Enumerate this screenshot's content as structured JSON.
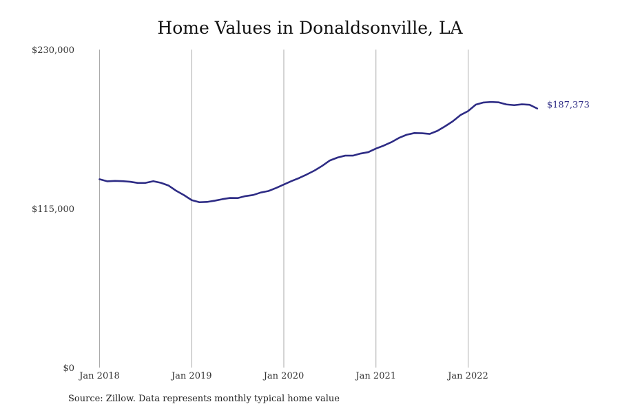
{
  "chart_data": {
    "type": "line",
    "title": "Home Values in Donaldsonville, LA",
    "source": "Source: Zillow. Data represents monthly typical home value",
    "ylim": [
      0,
      230000
    ],
    "y_ticks": [
      {
        "value": 230000,
        "label": "$230,000"
      },
      {
        "value": 115000,
        "label": "$115,000"
      },
      {
        "value": 0,
        "label": "$0"
      }
    ],
    "xlim": [
      0,
      53
    ],
    "x_ticks": [
      {
        "value": 0,
        "label": "Jan 2018"
      },
      {
        "value": 12,
        "label": "Jan 2019"
      },
      {
        "value": 24,
        "label": "Jan 2020"
      },
      {
        "value": 36,
        "label": "Jan 2021"
      },
      {
        "value": 48,
        "label": "Jan 2022"
      }
    ],
    "grid": {
      "vertical": true,
      "horizontal": false
    },
    "series": [
      {
        "color": "#2e2c85",
        "end_label": "$187,373",
        "x": [
          "Jan 2018",
          "Feb 2018",
          "Mar 2018",
          "Apr 2018",
          "May 2018",
          "Jun 2018",
          "Jul 2018",
          "Aug 2018",
          "Sep 2018",
          "Oct 2018",
          "Nov 2018",
          "Dec 2018",
          "Jan 2019",
          "Feb 2019",
          "Mar 2019",
          "Apr 2019",
          "May 2019",
          "Jun 2019",
          "Jul 2019",
          "Aug 2019",
          "Sep 2019",
          "Oct 2019",
          "Nov 2019",
          "Dec 2019",
          "Jan 2020",
          "Feb 2020",
          "Mar 2020",
          "Apr 2020",
          "May 2020",
          "Jun 2020",
          "Jul 2020",
          "Aug 2020",
          "Sep 2020",
          "Oct 2020",
          "Nov 2020",
          "Dec 2020",
          "Jan 2021",
          "Feb 2021",
          "Mar 2021",
          "Apr 2021",
          "May 2021",
          "Jun 2021",
          "Jul 2021",
          "Aug 2021",
          "Sep 2021",
          "Oct 2021",
          "Nov 2021",
          "Dec 2021",
          "Jan 2022",
          "Feb 2022",
          "Mar 2022",
          "Apr 2022",
          "May 2022",
          "Jun 2022",
          "Jul 2022",
          "Aug 2022",
          "Sep 2022",
          "Oct 2022"
        ],
        "values": [
          136200,
          134700,
          135000,
          134800,
          134400,
          133500,
          133600,
          134800,
          133600,
          131600,
          127800,
          124700,
          121100,
          119600,
          119800,
          120700,
          121800,
          122700,
          122600,
          124000,
          124800,
          126600,
          127700,
          129900,
          132400,
          134900,
          137100,
          139700,
          142500,
          145900,
          149800,
          151900,
          153300,
          153300,
          154800,
          155800,
          158400,
          160500,
          163000,
          166100,
          168400,
          169600,
          169500,
          169000,
          171200,
          174500,
          178100,
          182600,
          185500,
          190200,
          191700,
          192100,
          191800,
          190300,
          189800,
          190400,
          190100,
          187373
        ]
      }
    ]
  }
}
